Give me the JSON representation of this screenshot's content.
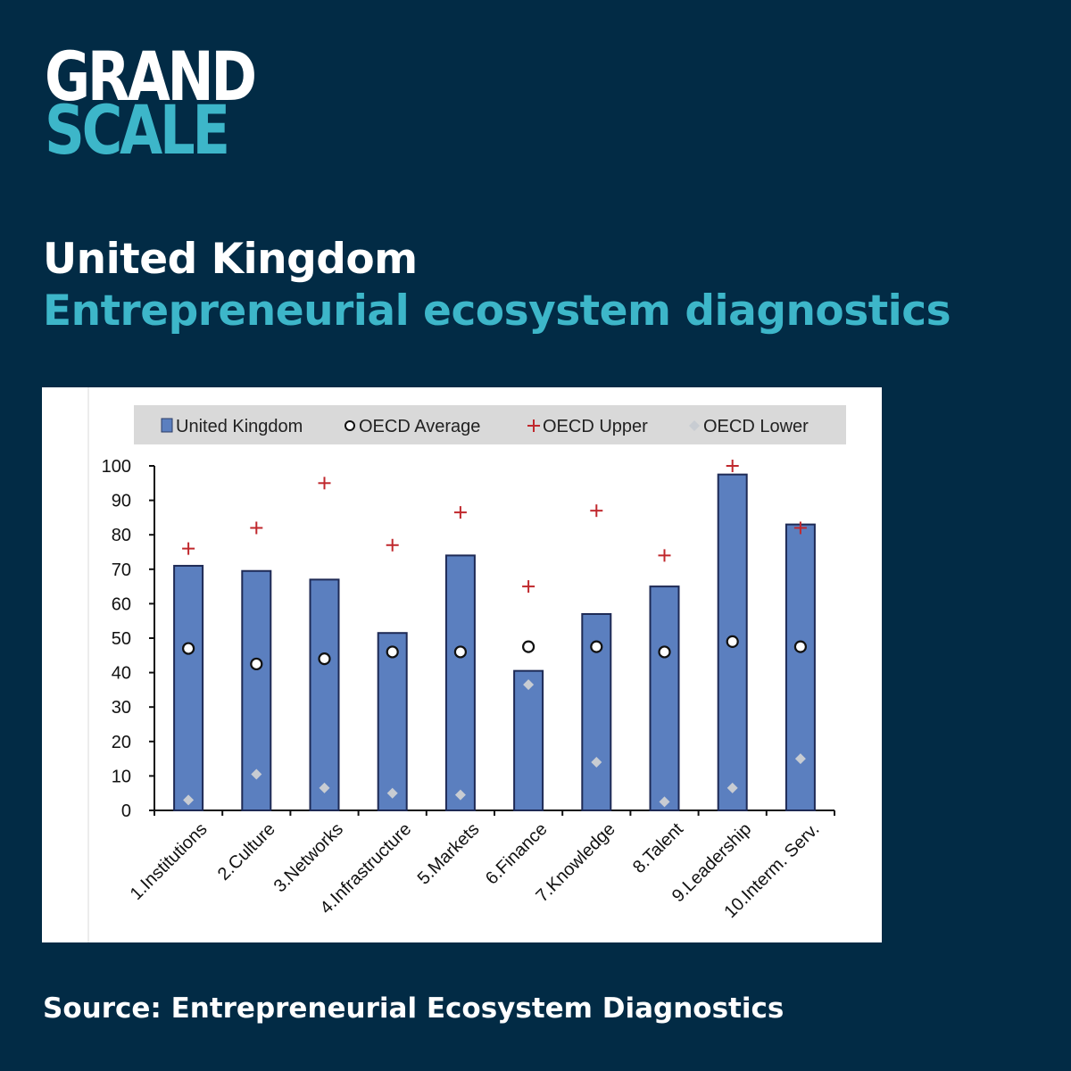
{
  "brand": {
    "line1": "GRAND",
    "line2": "SCALE"
  },
  "heading": {
    "title": "United Kingdom",
    "subtitle": "Entrepreneurial ecosystem diagnostics"
  },
  "source": "Source: Entrepreneurial Ecosystem Diagnostics",
  "colors": {
    "background": "#022b45",
    "accent": "#3db6c9",
    "bar": "#5b7fbf",
    "upper_marker": "#c0282d",
    "lower_marker": "#c8ccd2"
  },
  "chart_data": {
    "type": "bar",
    "categories": [
      "1.Institutions",
      "2.Culture",
      "3.Networks",
      "4.Infrastructure",
      "5.Markets",
      "6.Finance",
      "7.Knowledge",
      "8.Talent",
      "9.Leadership",
      "10.Interm. Serv."
    ],
    "series": [
      {
        "name": "United Kingdom",
        "kind": "bar",
        "values": [
          71,
          69.5,
          67,
          51.5,
          74,
          40.5,
          57,
          65,
          97.5,
          83
        ]
      },
      {
        "name": "OECD Average",
        "kind": "circle",
        "values": [
          47,
          42.5,
          44,
          46,
          46,
          47.5,
          47.5,
          46,
          49,
          47.5
        ]
      },
      {
        "name": "OECD Upper",
        "kind": "plus",
        "values": [
          76,
          82,
          95,
          77,
          86.5,
          65,
          87,
          74,
          100,
          82
        ]
      },
      {
        "name": "OECD Lower",
        "kind": "diamond",
        "values": [
          3,
          10.5,
          6.5,
          5,
          4.5,
          36.5,
          14,
          2.5,
          6.5,
          15
        ]
      }
    ],
    "yticks": [
      0,
      10,
      20,
      30,
      40,
      50,
      60,
      70,
      80,
      90,
      100
    ],
    "ylim": [
      0,
      100
    ],
    "legend_position": "top",
    "grid": false
  }
}
